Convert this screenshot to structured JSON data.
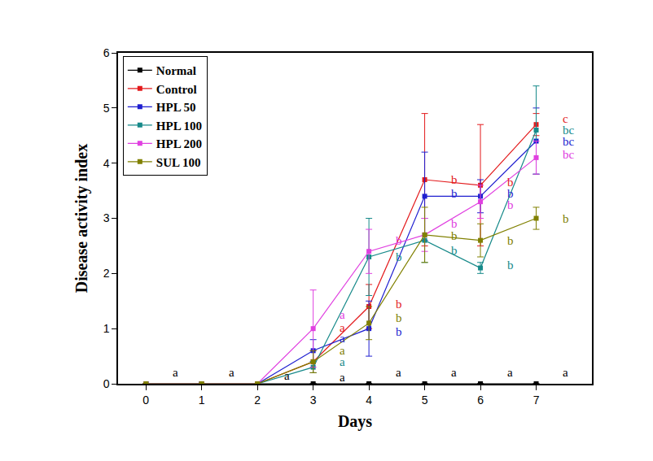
{
  "chart_data": {
    "type": "line",
    "x_label": "Days",
    "y_label": "Disease activity index",
    "x": [
      0,
      1,
      2,
      3,
      4,
      5,
      6,
      7
    ],
    "xlim": [
      -0.5,
      8
    ],
    "xticks": [
      0,
      1,
      2,
      3,
      4,
      5,
      6,
      7
    ],
    "ylim": [
      0,
      6
    ],
    "yticks": [
      0,
      1,
      2,
      3,
      4,
      5,
      6
    ],
    "grid": false,
    "legend": "upper left",
    "marker": "square",
    "series": [
      {
        "name": "Normal",
        "color": "#000000",
        "values": [
          0,
          0,
          0,
          0,
          0,
          0,
          0,
          0
        ],
        "errors": [
          0,
          0,
          0,
          0,
          0,
          0,
          0,
          0
        ]
      },
      {
        "name": "Control",
        "color": "#e31a1c",
        "values": [
          0,
          0,
          0,
          0.4,
          1.4,
          3.7,
          3.6,
          4.7
        ],
        "errors": [
          0,
          0,
          0,
          0.2,
          0.4,
          1.2,
          1.1,
          0.2
        ]
      },
      {
        "name": "HPL 50",
        "color": "#1f1fd0",
        "values": [
          0,
          0,
          0,
          0.6,
          1.0,
          3.4,
          3.4,
          4.4
        ],
        "errors": [
          0,
          0,
          0,
          0.2,
          0.5,
          0.8,
          0.3,
          0.6
        ]
      },
      {
        "name": "HPL 100",
        "color": "#178a8a",
        "values": [
          0,
          0,
          0,
          0.3,
          2.3,
          2.6,
          2.1,
          4.6
        ],
        "errors": [
          0,
          0,
          0,
          0.1,
          0.7,
          0.4,
          0.1,
          0.8
        ]
      },
      {
        "name": "HPL 200",
        "color": "#e040e0",
        "values": [
          0,
          0,
          0,
          1.0,
          2.4,
          2.7,
          3.3,
          4.1
        ],
        "errors": [
          0,
          0,
          0,
          0.7,
          0.4,
          0.3,
          0.3,
          0.3
        ]
      },
      {
        "name": "SUL 100",
        "color": "#808000",
        "values": [
          0,
          0,
          0,
          0.4,
          1.1,
          2.7,
          2.6,
          3.0
        ],
        "errors": [
          0,
          0,
          0,
          0.2,
          0.3,
          0.5,
          0.3,
          0.2
        ]
      }
    ],
    "annotations": [
      {
        "x": 0.45,
        "y": 0.2,
        "text": "a",
        "color": "#000000"
      },
      {
        "x": 1.45,
        "y": 0.2,
        "text": "a",
        "color": "#000000"
      },
      {
        "x": 2.45,
        "y": 0.15,
        "text": "a",
        "color": "#000000"
      },
      {
        "x": 3.45,
        "y": 1.25,
        "text": "a",
        "color": "#e040e0"
      },
      {
        "x": 3.45,
        "y": 1.02,
        "text": "a",
        "color": "#e31a1c"
      },
      {
        "x": 3.45,
        "y": 0.82,
        "text": "a",
        "color": "#1f1fd0"
      },
      {
        "x": 3.45,
        "y": 0.6,
        "text": "a",
        "color": "#808000"
      },
      {
        "x": 3.45,
        "y": 0.4,
        "text": "a",
        "color": "#178a8a"
      },
      {
        "x": 3.45,
        "y": 0.12,
        "text": "a",
        "color": "#000000"
      },
      {
        "x": 4.45,
        "y": 2.6,
        "text": "b",
        "color": "#e040e0"
      },
      {
        "x": 4.45,
        "y": 2.3,
        "text": "b",
        "color": "#178a8a"
      },
      {
        "x": 4.45,
        "y": 1.45,
        "text": "b",
        "color": "#e31a1c"
      },
      {
        "x": 4.45,
        "y": 1.2,
        "text": "b",
        "color": "#808000"
      },
      {
        "x": 4.45,
        "y": 0.95,
        "text": "b",
        "color": "#1f1fd0"
      },
      {
        "x": 4.45,
        "y": 0.2,
        "text": "a",
        "color": "#000000"
      },
      {
        "x": 5.45,
        "y": 3.7,
        "text": "b",
        "color": "#e31a1c"
      },
      {
        "x": 5.45,
        "y": 3.45,
        "text": "b",
        "color": "#1f1fd0"
      },
      {
        "x": 5.45,
        "y": 2.9,
        "text": "b",
        "color": "#e040e0"
      },
      {
        "x": 5.45,
        "y": 2.68,
        "text": "b",
        "color": "#808000"
      },
      {
        "x": 5.45,
        "y": 2.42,
        "text": "b",
        "color": "#178a8a"
      },
      {
        "x": 5.45,
        "y": 0.2,
        "text": "a",
        "color": "#000000"
      },
      {
        "x": 6.45,
        "y": 3.65,
        "text": "b",
        "color": "#e31a1c"
      },
      {
        "x": 6.45,
        "y": 3.45,
        "text": "b",
        "color": "#1f1fd0"
      },
      {
        "x": 6.45,
        "y": 3.25,
        "text": "b",
        "color": "#e040e0"
      },
      {
        "x": 6.45,
        "y": 2.6,
        "text": "b",
        "color": "#808000"
      },
      {
        "x": 6.45,
        "y": 2.15,
        "text": "b",
        "color": "#178a8a"
      },
      {
        "x": 6.45,
        "y": 0.2,
        "text": "a",
        "color": "#000000"
      },
      {
        "x": 7.45,
        "y": 4.8,
        "text": "c",
        "color": "#e31a1c"
      },
      {
        "x": 7.45,
        "y": 4.6,
        "text": "bc",
        "color": "#178a8a"
      },
      {
        "x": 7.45,
        "y": 4.4,
        "text": "bc",
        "color": "#1f1fd0"
      },
      {
        "x": 7.45,
        "y": 4.15,
        "text": "bc",
        "color": "#e040e0"
      },
      {
        "x": 7.45,
        "y": 3.0,
        "text": "b",
        "color": "#808000"
      },
      {
        "x": 7.45,
        "y": 0.2,
        "text": "a",
        "color": "#000000"
      }
    ]
  }
}
